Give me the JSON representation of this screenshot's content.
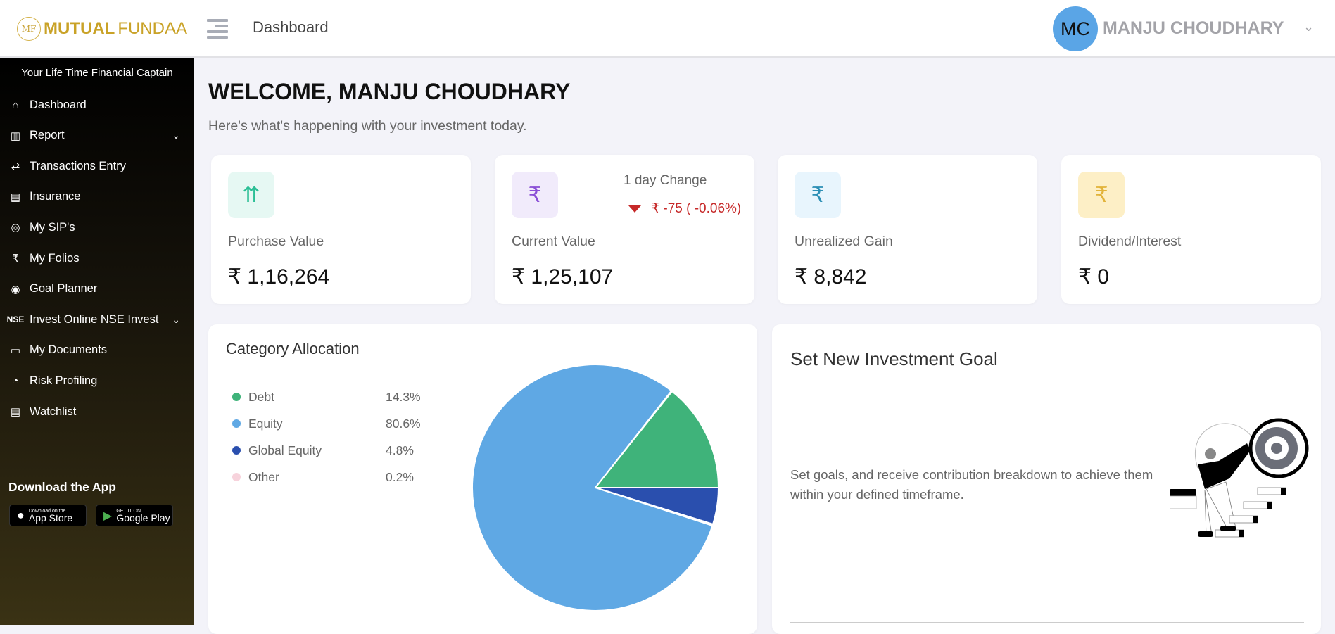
{
  "header": {
    "logo_bold": "MUTUAL",
    "logo_light": "FUNDAA",
    "logo_mark": "MF",
    "title": "Dashboard",
    "avatar_initials": "MC",
    "user_name": "MANJU CHOUDHARY"
  },
  "sidebar": {
    "tagline": "Your Life Time Financial Captain",
    "items": [
      {
        "label": "Dashboard",
        "icon": "home-icon"
      },
      {
        "label": "Report",
        "icon": "report-icon",
        "expandable": true
      },
      {
        "label": "Transactions Entry",
        "icon": "transfer-arrows-icon"
      },
      {
        "label": "Insurance",
        "icon": "document-add-icon"
      },
      {
        "label": "My SIP's",
        "icon": "sip-cycle-icon"
      },
      {
        "label": "My Folios",
        "icon": "folio-user-icon"
      },
      {
        "label": "Goal Planner",
        "icon": "target-search-icon"
      },
      {
        "label": "Invest Online NSE Invest",
        "icon": "nse-icon",
        "icon_text": "NSE",
        "expandable": true
      },
      {
        "label": "My Documents",
        "icon": "document-icon"
      },
      {
        "label": "Risk Profiling",
        "icon": "gauge-icon"
      },
      {
        "label": "Watchlist",
        "icon": "list-document-icon"
      }
    ],
    "download_title": "Download the App",
    "app_store": {
      "small": "Download on the",
      "large": "App Store"
    },
    "google_play": {
      "small": "GET IT ON",
      "large": "Google Play"
    }
  },
  "main": {
    "welcome": "WELCOME, MANJU CHOUDHARY",
    "subtitle": "Here's what's happening with your investment today.",
    "cards": [
      {
        "label": "Purchase Value",
        "value": "₹ 1,16,264",
        "icon": "growth-coins-icon",
        "icon_bg": "#e6f8f3",
        "icon_color": "#2bbf95"
      },
      {
        "label": "Current Value",
        "value": "₹ 1,25,107",
        "icon": "rupee-coins-icon",
        "icon_bg": "#f1ebfb",
        "icon_color": "#8a4fd6",
        "change_label": "1 day Change",
        "change_value": "₹ -75 ( -0.06%)",
        "change_color": "#c62828"
      },
      {
        "label": "Unrealized Gain",
        "value": "₹ 8,842",
        "icon": "rupee-hand-icon",
        "icon_bg": "#e8f5fd",
        "icon_color": "#2c8fb5"
      },
      {
        "label": "Dividend/Interest",
        "value": "₹ 0",
        "icon": "money-bag-icon",
        "icon_bg": "#fdefc6",
        "icon_color": "#e2b33a"
      }
    ],
    "category": {
      "title": "Category Allocation"
    },
    "goal": {
      "title": "Set New Investment Goal",
      "description": "Set goals, and receive contribution breakdown to achieve them within your defined timeframe."
    }
  },
  "chart_data": {
    "type": "pie",
    "title": "Category Allocation",
    "categories": [
      "Debt",
      "Equity",
      "Global Equity",
      "Other"
    ],
    "labels": [
      "14.3%",
      "80.6%",
      "4.8%",
      "0.2%"
    ],
    "values": [
      14.3,
      80.6,
      4.8,
      0.2
    ],
    "colors": [
      "#3fb37a",
      "#5fa8e4",
      "#2a4fae",
      "#f7d3dc"
    ],
    "legend": "left"
  }
}
